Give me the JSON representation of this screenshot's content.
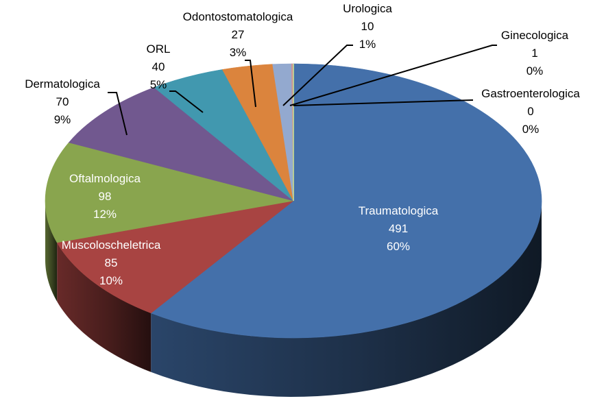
{
  "chart_data": {
    "type": "pie",
    "style": "3d",
    "title": "",
    "data_labels": [
      "category",
      "value",
      "percent"
    ],
    "slices": [
      {
        "name": "Traumatologica",
        "value": 491,
        "percent": "60%",
        "color": "#4470AA"
      },
      {
        "name": "Muscoloscheletrica",
        "value": 85,
        "percent": "10%",
        "color": "#A84442"
      },
      {
        "name": "Oftalmologica",
        "value": 98,
        "percent": "12%",
        "color": "#89A54E"
      },
      {
        "name": "Dermatologica",
        "value": 70,
        "percent": "9%",
        "color": "#71588F"
      },
      {
        "name": "ORL",
        "value": 40,
        "percent": "5%",
        "color": "#4198AF"
      },
      {
        "name": "Odontostomatologica",
        "value": 27,
        "percent": "3%",
        "color": "#DB843D"
      },
      {
        "name": "Urologica",
        "value": 10,
        "percent": "1%",
        "color": "#93A9CF"
      },
      {
        "name": "Ginecologica",
        "value": 1,
        "percent": "0%",
        "color": "#D19392"
      },
      {
        "name": "Gastroenterologica",
        "value": 0,
        "percent": "0%",
        "color": "#B9CD96"
      }
    ]
  }
}
